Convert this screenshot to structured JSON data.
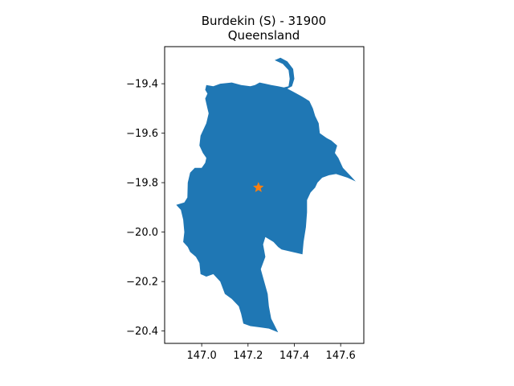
{
  "chart_data": {
    "type": "map",
    "title": "Burdekin (S) - 31900",
    "subtitle": "Queensland",
    "xlabel": "",
    "ylabel": "",
    "xlim": [
      146.84,
      147.7
    ],
    "ylim": [
      -20.45,
      -19.25
    ],
    "xticks": [
      {
        "value": 147.0,
        "label": "147.0"
      },
      {
        "value": 147.2,
        "label": "147.2"
      },
      {
        "value": 147.4,
        "label": "147.4"
      },
      {
        "value": 147.6,
        "label": "147.6"
      }
    ],
    "yticks": [
      {
        "value": -19.4,
        "label": "−19.4"
      },
      {
        "value": -19.6,
        "label": "−19.6"
      },
      {
        "value": -19.8,
        "label": "−19.8"
      },
      {
        "value": -20.0,
        "label": "−20.0"
      },
      {
        "value": -20.2,
        "label": "−20.2"
      },
      {
        "value": -20.4,
        "label": "−20.4"
      }
    ],
    "region": {
      "name": "Burdekin (S)",
      "fill_color": "#1f77b4",
      "boundary": [
        [
          147.315,
          -19.305
        ],
        [
          147.35,
          -19.32
        ],
        [
          147.375,
          -19.345
        ],
        [
          147.38,
          -19.38
        ],
        [
          147.375,
          -19.41
        ],
        [
          147.355,
          -19.415
        ],
        [
          147.33,
          -19.41
        ],
        [
          147.3,
          -19.405
        ],
        [
          147.275,
          -19.4
        ],
        [
          147.25,
          -19.395
        ],
        [
          147.23,
          -19.405
        ],
        [
          147.21,
          -19.41
        ],
        [
          147.17,
          -19.405
        ],
        [
          147.13,
          -19.395
        ],
        [
          147.08,
          -19.4
        ],
        [
          147.05,
          -19.41
        ],
        [
          147.02,
          -19.405
        ],
        [
          147.015,
          -19.425
        ],
        [
          147.025,
          -19.44
        ],
        [
          147.015,
          -19.46
        ],
        [
          147.02,
          -19.48
        ],
        [
          147.025,
          -19.5
        ],
        [
          147.03,
          -19.52
        ],
        [
          147.025,
          -19.54
        ],
        [
          147.02,
          -19.56
        ],
        [
          146.995,
          -19.61
        ],
        [
          146.99,
          -19.65
        ],
        [
          147.005,
          -19.68
        ],
        [
          147.02,
          -19.7
        ],
        [
          147.015,
          -19.72
        ],
        [
          147.0,
          -19.74
        ],
        [
          146.97,
          -19.74
        ],
        [
          146.95,
          -19.76
        ],
        [
          146.94,
          -19.8
        ],
        [
          146.938,
          -19.86
        ],
        [
          146.925,
          -19.88
        ],
        [
          146.89,
          -19.89
        ],
        [
          146.91,
          -19.91
        ],
        [
          146.92,
          -19.95
        ],
        [
          146.925,
          -20.0
        ],
        [
          146.92,
          -20.04
        ],
        [
          146.94,
          -20.06
        ],
        [
          146.95,
          -20.08
        ],
        [
          146.975,
          -20.1
        ],
        [
          146.99,
          -20.125
        ],
        [
          146.995,
          -20.17
        ],
        [
          147.02,
          -20.18
        ],
        [
          147.05,
          -20.17
        ],
        [
          147.08,
          -20.2
        ],
        [
          147.1,
          -20.25
        ],
        [
          147.13,
          -20.27
        ],
        [
          147.16,
          -20.3
        ],
        [
          147.17,
          -20.33
        ],
        [
          147.18,
          -20.37
        ],
        [
          147.21,
          -20.38
        ],
        [
          147.25,
          -20.385
        ],
        [
          147.29,
          -20.39
        ],
        [
          147.33,
          -20.405
        ],
        [
          147.3,
          -20.35
        ],
        [
          147.29,
          -20.3
        ],
        [
          147.285,
          -20.25
        ],
        [
          147.27,
          -20.2
        ],
        [
          147.255,
          -20.15
        ],
        [
          147.275,
          -20.1
        ],
        [
          147.265,
          -20.05
        ],
        [
          147.275,
          -20.02
        ],
        [
          147.31,
          -20.04
        ],
        [
          147.33,
          -20.06
        ],
        [
          147.345,
          -20.07
        ],
        [
          147.39,
          -20.08
        ],
        [
          147.435,
          -20.09
        ],
        [
          147.44,
          -20.04
        ],
        [
          147.45,
          -19.98
        ],
        [
          147.455,
          -19.92
        ],
        [
          147.455,
          -19.87
        ],
        [
          147.47,
          -19.84
        ],
        [
          147.49,
          -19.82
        ],
        [
          147.5,
          -19.8
        ],
        [
          147.52,
          -19.78
        ],
        [
          147.55,
          -19.77
        ],
        [
          147.58,
          -19.765
        ],
        [
          147.63,
          -19.78
        ],
        [
          147.665,
          -19.795
        ],
        [
          147.64,
          -19.77
        ],
        [
          147.61,
          -19.74
        ],
        [
          147.59,
          -19.7
        ],
        [
          147.575,
          -19.68
        ],
        [
          147.585,
          -19.65
        ],
        [
          147.56,
          -19.63
        ],
        [
          147.54,
          -19.62
        ],
        [
          147.51,
          -19.6
        ],
        [
          147.505,
          -19.56
        ],
        [
          147.49,
          -19.53
        ],
        [
          147.48,
          -19.5
        ],
        [
          147.465,
          -19.47
        ],
        [
          147.43,
          -19.45
        ],
        [
          147.39,
          -19.43
        ],
        [
          147.37,
          -19.42
        ],
        [
          147.39,
          -19.41
        ],
        [
          147.4,
          -19.38
        ],
        [
          147.395,
          -19.34
        ],
        [
          147.37,
          -19.31
        ],
        [
          147.34,
          -19.295
        ]
      ]
    },
    "marker": {
      "name": "centroid",
      "lon": 147.245,
      "lat": -19.82,
      "shape": "star",
      "color": "#ff7f0e"
    }
  }
}
